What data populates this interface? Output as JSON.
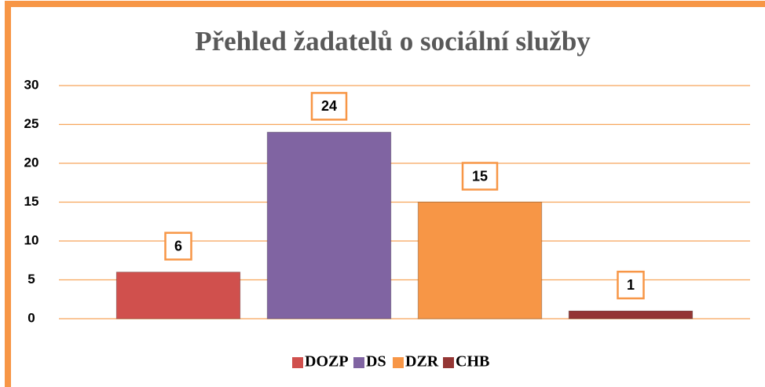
{
  "chart_data": {
    "type": "bar",
    "title": "Přehled žadatelů o sociální služby",
    "categories": [
      "DOZP",
      "DS",
      "DZR",
      "CHB"
    ],
    "values": [
      6,
      24,
      15,
      1
    ],
    "colors": [
      "#d0504d",
      "#8064a2",
      "#f79646",
      "#943634"
    ],
    "ylim": [
      0,
      30
    ],
    "yticks": [
      0,
      5,
      10,
      15,
      20,
      25,
      30
    ],
    "grid": true,
    "legend": "bottom"
  }
}
